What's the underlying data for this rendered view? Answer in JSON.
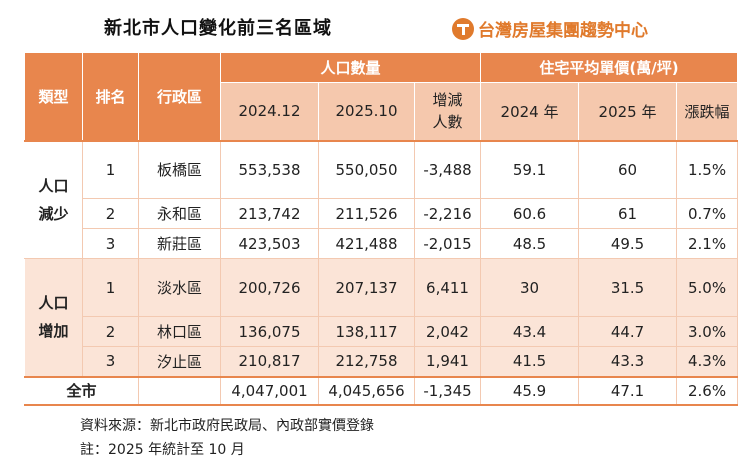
{
  "title": "新北市人口變化前三名區域",
  "brand": {
    "name": "台灣房屋集團趨勢中心",
    "color": "#e07a2c",
    "icon": "taiwan-house-logo-icon"
  },
  "colors": {
    "header": "#e8864d",
    "subheader": "#f5c8ad",
    "highlight_rows": "#fbe4d7"
  },
  "table": {
    "headers": {
      "type": "類型",
      "rank": "排名",
      "district": "行政區",
      "population": "人口數量",
      "price": "住宅平均單價(萬/坪)",
      "pop_2024": "2024.12",
      "pop_2025": "2025.10",
      "change": "增減人數",
      "price_2024": "2024 年",
      "price_2025": "2025 年",
      "price_change": "漲跌幅"
    },
    "groups": [
      {
        "type": "人口減少",
        "rows": [
          {
            "rank": "1",
            "district": "板橋區",
            "pop_2024": "553,538",
            "pop_2025": "550,050",
            "change": "-3,488",
            "price_2024": "59.1",
            "price_2025": "60",
            "price_change": "1.5%"
          },
          {
            "rank": "2",
            "district": "永和區",
            "pop_2024": "213,742",
            "pop_2025": "211,526",
            "change": "-2,216",
            "price_2024": "60.6",
            "price_2025": "61",
            "price_change": "0.7%"
          },
          {
            "rank": "3",
            "district": "新莊區",
            "pop_2024": "423,503",
            "pop_2025": "421,488",
            "change": "-2,015",
            "price_2024": "48.5",
            "price_2025": "49.5",
            "price_change": "2.1%"
          }
        ]
      },
      {
        "type": "人口增加",
        "rows": [
          {
            "rank": "1",
            "district": "淡水區",
            "pop_2024": "200,726",
            "pop_2025": "207,137",
            "change": "6,411",
            "price_2024": "30",
            "price_2025": "31.5",
            "price_change": "5.0%"
          },
          {
            "rank": "2",
            "district": "林口區",
            "pop_2024": "136,075",
            "pop_2025": "138,117",
            "change": "2,042",
            "price_2024": "43.4",
            "price_2025": "44.7",
            "price_change": "3.0%"
          },
          {
            "rank": "3",
            "district": "汐止區",
            "pop_2024": "210,817",
            "pop_2025": "212,758",
            "change": "1,941",
            "price_2024": "41.5",
            "price_2025": "43.3",
            "price_change": "4.3%"
          }
        ]
      }
    ],
    "total": {
      "label": "全市",
      "pop_2024": "4,047,001",
      "pop_2025": "4,045,656",
      "change": "-1,345",
      "price_2024": "45.9",
      "price_2025": "47.1",
      "price_change": "2.6%"
    }
  },
  "notes": {
    "source": "資料來源：新北市政府民政局、內政部實價登錄",
    "note": "註：2025 年統計至 10 月"
  }
}
